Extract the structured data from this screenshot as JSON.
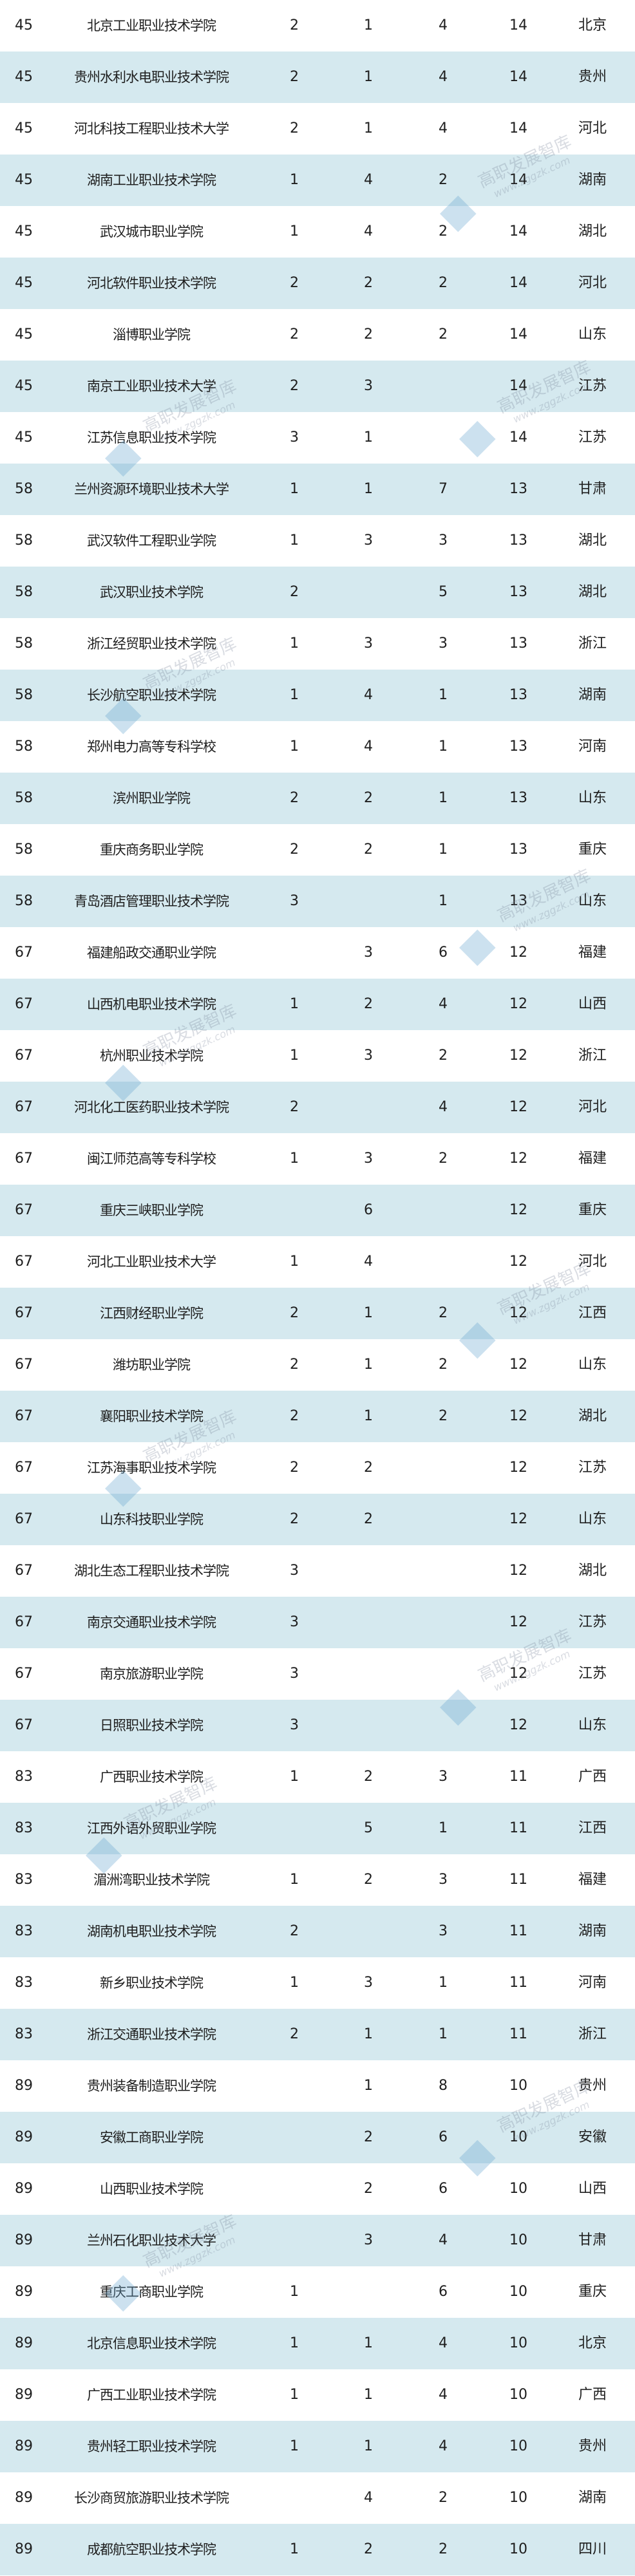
{
  "colors": {
    "shaded_row": "#d5e9ef",
    "plain_row": "#ffffff",
    "text": "#1e1e1e"
  },
  "watermark": {
    "title": "高职发展智库",
    "url": "www.zggzk.com"
  },
  "rows": [
    [
      "45",
      "北京工业职业技术学院",
      "2",
      "1",
      "4",
      "14",
      "北京"
    ],
    [
      "45",
      "贵州水利水电职业技术学院",
      "2",
      "1",
      "4",
      "14",
      "贵州"
    ],
    [
      "45",
      "河北科技工程职业技术大学",
      "2",
      "1",
      "4",
      "14",
      "河北"
    ],
    [
      "45",
      "湖南工业职业技术学院",
      "1",
      "4",
      "2",
      "14",
      "湖南"
    ],
    [
      "45",
      "武汉城市职业学院",
      "1",
      "4",
      "2",
      "14",
      "湖北"
    ],
    [
      "45",
      "河北软件职业技术学院",
      "2",
      "2",
      "2",
      "14",
      "河北"
    ],
    [
      "45",
      "淄博职业学院",
      "2",
      "2",
      "2",
      "14",
      "山东"
    ],
    [
      "45",
      "南京工业职业技术大学",
      "2",
      "3",
      "",
      "14",
      "江苏"
    ],
    [
      "45",
      "江苏信息职业技术学院",
      "3",
      "1",
      "",
      "14",
      "江苏"
    ],
    [
      "58",
      "兰州资源环境职业技术大学",
      "1",
      "1",
      "7",
      "13",
      "甘肃"
    ],
    [
      "58",
      "武汉软件工程职业学院",
      "1",
      "3",
      "3",
      "13",
      "湖北"
    ],
    [
      "58",
      "武汉职业技术学院",
      "2",
      "",
      "5",
      "13",
      "湖北"
    ],
    [
      "58",
      "浙江经贸职业技术学院",
      "1",
      "3",
      "3",
      "13",
      "浙江"
    ],
    [
      "58",
      "长沙航空职业技术学院",
      "1",
      "4",
      "1",
      "13",
      "湖南"
    ],
    [
      "58",
      "郑州电力高等专科学校",
      "1",
      "4",
      "1",
      "13",
      "河南"
    ],
    [
      "58",
      "滨州职业学院",
      "2",
      "2",
      "1",
      "13",
      "山东"
    ],
    [
      "58",
      "重庆商务职业学院",
      "2",
      "2",
      "1",
      "13",
      "重庆"
    ],
    [
      "58",
      "青岛酒店管理职业技术学院",
      "3",
      "",
      "1",
      "13",
      "山东"
    ],
    [
      "67",
      "福建船政交通职业学院",
      "",
      "3",
      "6",
      "12",
      "福建"
    ],
    [
      "67",
      "山西机电职业技术学院",
      "1",
      "2",
      "4",
      "12",
      "山西"
    ],
    [
      "67",
      "杭州职业技术学院",
      "1",
      "3",
      "2",
      "12",
      "浙江"
    ],
    [
      "67",
      "河北化工医药职业技术学院",
      "2",
      "",
      "4",
      "12",
      "河北"
    ],
    [
      "67",
      "闽江师范高等专科学校",
      "1",
      "3",
      "2",
      "12",
      "福建"
    ],
    [
      "67",
      "重庆三峡职业学院",
      "",
      "6",
      "",
      "12",
      "重庆"
    ],
    [
      "67",
      "河北工业职业技术大学",
      "1",
      "4",
      "",
      "12",
      "河北"
    ],
    [
      "67",
      "江西财经职业学院",
      "2",
      "1",
      "2",
      "12",
      "江西"
    ],
    [
      "67",
      "潍坊职业学院",
      "2",
      "1",
      "2",
      "12",
      "山东"
    ],
    [
      "67",
      "襄阳职业技术学院",
      "2",
      "1",
      "2",
      "12",
      "湖北"
    ],
    [
      "67",
      "江苏海事职业技术学院",
      "2",
      "2",
      "",
      "12",
      "江苏"
    ],
    [
      "67",
      "山东科技职业学院",
      "2",
      "2",
      "",
      "12",
      "山东"
    ],
    [
      "67",
      "湖北生态工程职业技术学院",
      "3",
      "",
      "",
      "12",
      "湖北"
    ],
    [
      "67",
      "南京交通职业技术学院",
      "3",
      "",
      "",
      "12",
      "江苏"
    ],
    [
      "67",
      "南京旅游职业学院",
      "3",
      "",
      "",
      "12",
      "江苏"
    ],
    [
      "67",
      "日照职业技术学院",
      "3",
      "",
      "",
      "12",
      "山东"
    ],
    [
      "83",
      "广西职业技术学院",
      "1",
      "2",
      "3",
      "11",
      "广西"
    ],
    [
      "83",
      "江西外语外贸职业学院",
      "",
      "5",
      "1",
      "11",
      "江西"
    ],
    [
      "83",
      "湄洲湾职业技术学院",
      "1",
      "2",
      "3",
      "11",
      "福建"
    ],
    [
      "83",
      "湖南机电职业技术学院",
      "2",
      "",
      "3",
      "11",
      "湖南"
    ],
    [
      "83",
      "新乡职业技术学院",
      "1",
      "3",
      "1",
      "11",
      "河南"
    ],
    [
      "83",
      "浙江交通职业技术学院",
      "2",
      "1",
      "1",
      "11",
      "浙江"
    ],
    [
      "89",
      "贵州装备制造职业学院",
      "",
      "1",
      "8",
      "10",
      "贵州"
    ],
    [
      "89",
      "安徽工商职业学院",
      "",
      "2",
      "6",
      "10",
      "安徽"
    ],
    [
      "89",
      "山西职业技术学院",
      "",
      "2",
      "6",
      "10",
      "山西"
    ],
    [
      "89",
      "兰州石化职业技术大学",
      "",
      "3",
      "4",
      "10",
      "甘肃"
    ],
    [
      "89",
      "重庆工商职业学院",
      "1",
      "",
      "6",
      "10",
      "重庆"
    ],
    [
      "89",
      "北京信息职业技术学院",
      "1",
      "1",
      "4",
      "10",
      "北京"
    ],
    [
      "89",
      "广西工业职业技术学院",
      "1",
      "1",
      "4",
      "10",
      "广西"
    ],
    [
      "89",
      "贵州轻工职业技术学院",
      "1",
      "1",
      "4",
      "10",
      "贵州"
    ],
    [
      "89",
      "长沙商贸旅游职业技术学院",
      "",
      "4",
      "2",
      "10",
      "湖南"
    ],
    [
      "89",
      "成都航空职业技术学院",
      "1",
      "2",
      "2",
      "10",
      "四川"
    ]
  ]
}
